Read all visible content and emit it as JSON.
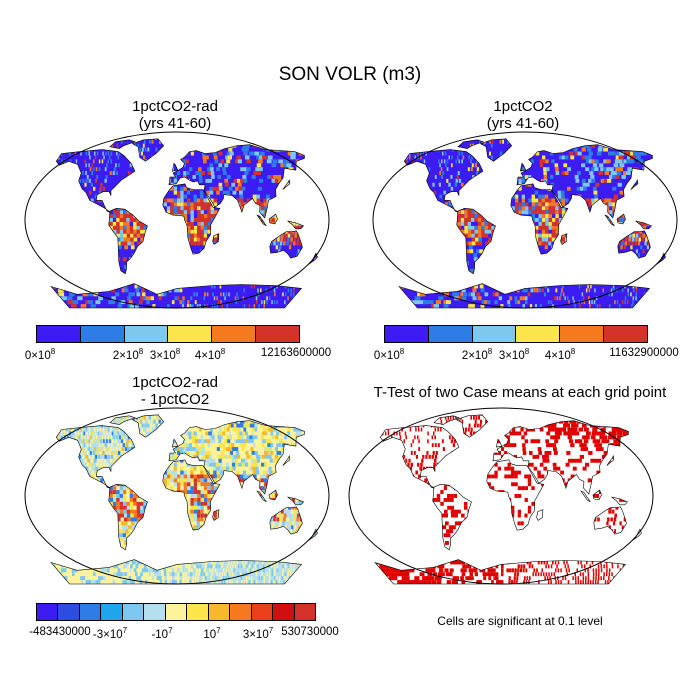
{
  "title": "SON VOLR (m3)",
  "chart_data": [
    {
      "type": "heatmap",
      "panel": "1pctCO2-rad",
      "title_lines": [
        "1pctCO2-rad",
        "(yrs 41-60)"
      ],
      "colorbar": {
        "colors": [
          "#3c1cf3",
          "#2e7ce6",
          "#7ec7ee",
          "#fbe54a",
          "#f7791e",
          "#d5322b"
        ],
        "tick_labels": [
          {
            "base": "0×10",
            "exp": "8"
          },
          {
            "base": "2×10",
            "exp": "8"
          },
          {
            "base": "3×10",
            "exp": "8"
          },
          {
            "base": "4×10",
            "exp": "8"
          },
          {
            "base": "12163600000",
            "exp": ""
          }
        ]
      }
    },
    {
      "type": "heatmap",
      "panel": "1pctCO2",
      "title_lines": [
        "1pctCO2",
        "(yrs 41-60)"
      ],
      "colorbar": {
        "colors": [
          "#3c1cf3",
          "#2e7ce6",
          "#7ec7ee",
          "#fbe54a",
          "#f7791e",
          "#d5322b"
        ],
        "tick_labels": [
          {
            "base": "0×10",
            "exp": "8"
          },
          {
            "base": "2×10",
            "exp": "8"
          },
          {
            "base": "3×10",
            "exp": "8"
          },
          {
            "base": "4×10",
            "exp": "8"
          },
          {
            "base": "11632900000",
            "exp": ""
          }
        ]
      }
    },
    {
      "type": "heatmap",
      "panel": "difference",
      "title_lines": [
        "1pctCO2-rad",
        "- 1pctCO2"
      ],
      "colorbar": {
        "colors": [
          "#3c1cf3",
          "#2b4de0",
          "#2e7ce6",
          "#1ea5ec",
          "#7ec7ee",
          "#b4dfef",
          "#fdf39a",
          "#fbe54a",
          "#f8b82b",
          "#f7791e",
          "#e9401b",
          "#d01010",
          "#d5322b"
        ],
        "tick_labels": [
          {
            "base": "-483430000",
            "exp": ""
          },
          {
            "base": "-3×10",
            "exp": "7"
          },
          {
            "base": "-10",
            "exp": "7"
          },
          {
            "base": "10",
            "exp": "7"
          },
          {
            "base": "3×10",
            "exp": "7"
          },
          {
            "base": "530730000",
            "exp": ""
          }
        ]
      }
    },
    {
      "type": "heatmap",
      "panel": "ttest",
      "title_lines": [
        "T-Test of two Case means at each grid point"
      ],
      "significant_color": "#e00000",
      "note": "Cells are significant at 0.1 level"
    }
  ]
}
